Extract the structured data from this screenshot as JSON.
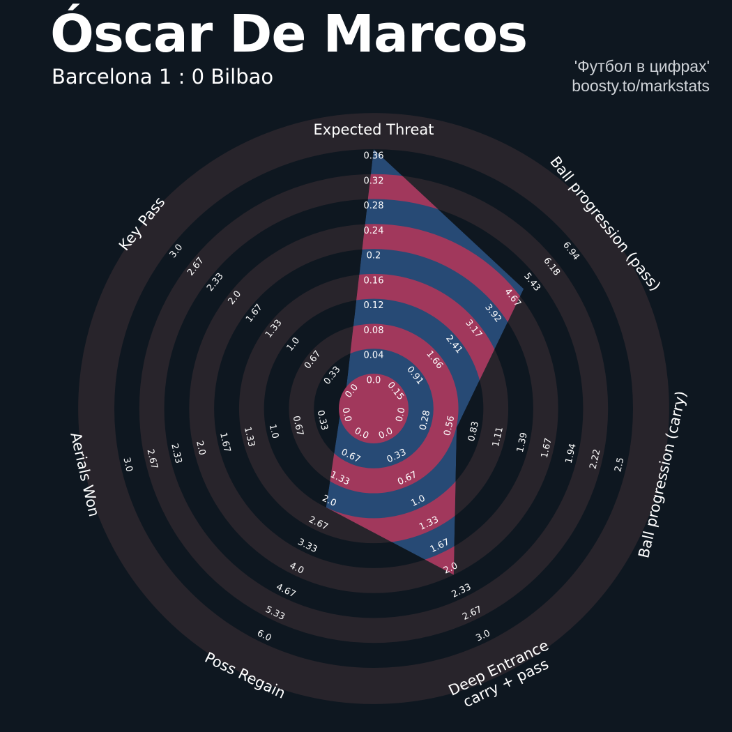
{
  "header": {
    "title": "Óscar De Marcos",
    "subtitle": "Barcelona 1 : 0 Bilbao",
    "credit_line1": "'Футбол в цифрах'",
    "credit_line2": "boosty.to/markstats"
  },
  "colors": {
    "background": "#0e1720",
    "ring_band": "#28242b",
    "fill_blue": "#274a75",
    "fill_pink": "#a1385c",
    "text": "#ffffff",
    "credit_text": "#cfd3d8"
  },
  "chart_data": {
    "type": "radar",
    "title": "Óscar De Marcos",
    "subtitle": "Barcelona 1 : 0 Bilbao",
    "axes": [
      {
        "label": "Expected Threat",
        "min": 0,
        "max": 0.36,
        "value": 0.36,
        "ticks": [
          "0.0",
          "0.04",
          "0.08",
          "0.12",
          "0.16",
          "0.2",
          "0.24",
          "0.28",
          "0.32",
          "0.36"
        ]
      },
      {
        "label": "Ball progression (pass)",
        "min": 0.15,
        "max": 6.94,
        "value": 4.9,
        "ticks": [
          "0.15",
          "0.91",
          "1.66",
          "2.41",
          "3.17",
          "3.92",
          "4.67",
          "5.43",
          "6.18",
          "6.94"
        ]
      },
      {
        "label": "Ball progression (carry)",
        "min": 0.0,
        "max": 2.5,
        "value": 0.56,
        "ticks": [
          "0.0",
          "0.28",
          "0.56",
          "0.83",
          "1.11",
          "1.39",
          "1.67",
          "1.94",
          "2.22",
          "2.5"
        ]
      },
      {
        "label": "Deep Entrance\ncarry + pass",
        "min": 0.0,
        "max": 3.0,
        "value": 2.0,
        "ticks": [
          "0.0",
          "0.33",
          "0.67",
          "1.0",
          "1.33",
          "1.67",
          "2.0",
          "2.33",
          "2.67",
          "3.0"
        ]
      },
      {
        "label": "Poss Regain",
        "min": 0.0,
        "max": 6.0,
        "value": 2.0,
        "ticks": [
          "0.0",
          "0.67",
          "1.33",
          "2.0",
          "2.67",
          "3.33",
          "4.0",
          "4.67",
          "5.33",
          "6.0"
        ]
      },
      {
        "label": "Aerials Won",
        "min": 0.0,
        "max": 3.0,
        "value": 0.0,
        "ticks": [
          "0.0",
          "0.33",
          "0.67",
          "1.0",
          "1.33",
          "1.67",
          "2.0",
          "2.33",
          "2.67",
          "3.0"
        ]
      },
      {
        "label": "Key Pass",
        "min": 0.0,
        "max": 3.0,
        "value": 0.0,
        "ticks": [
          "0.0",
          "0.33",
          "0.67",
          "1.0",
          "1.33",
          "1.67",
          "2.0",
          "2.33",
          "2.67",
          "3.0"
        ]
      }
    ]
  }
}
